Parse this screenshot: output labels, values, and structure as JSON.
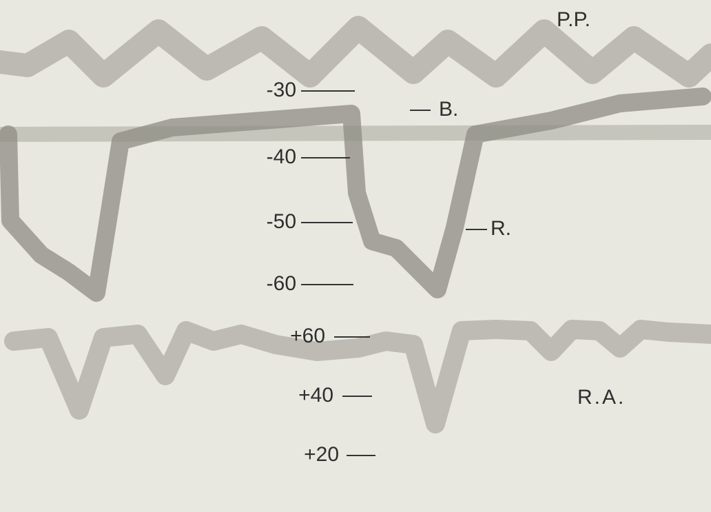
{
  "labels": {
    "top_right": "P.P.",
    "upper_curve": "B.",
    "middle_curve": "R.",
    "lower_right": "R.A."
  },
  "upper_scale": [
    "-30",
    "-40",
    "-50",
    "-60"
  ],
  "lower_scale": [
    "+60",
    "+40",
    "+20"
  ]
}
